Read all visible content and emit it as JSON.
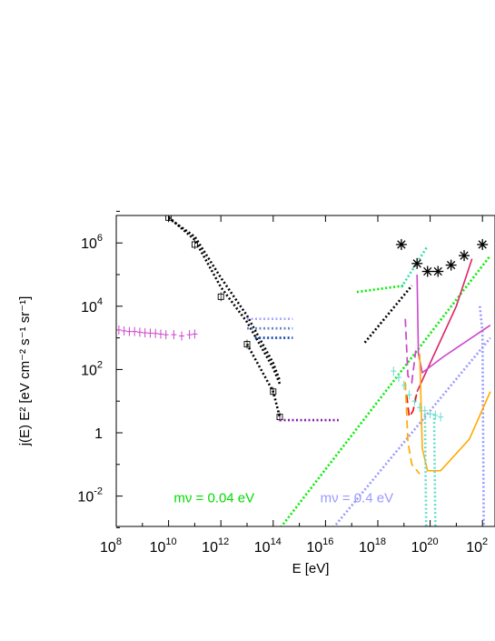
{
  "chart_data": {
    "type": "line",
    "xlabel": "E [eV]",
    "ylabel": "j(E) E² [eV cm⁻² s⁻¹ sr⁻¹]",
    "x_scale": "log",
    "y_scale": "log",
    "xlim_log10": [
      8,
      22.3
    ],
    "ylim_log10": [
      -3,
      7
    ],
    "x_ticks": [
      {
        "base": "10",
        "exp": "8",
        "log": 8
      },
      {
        "base": "10",
        "exp": "10",
        "log": 10
      },
      {
        "base": "10",
        "exp": "12",
        "log": 12
      },
      {
        "base": "10",
        "exp": "14",
        "log": 14
      },
      {
        "base": "10",
        "exp": "16",
        "log": 16
      },
      {
        "base": "10",
        "exp": "18",
        "log": 18
      },
      {
        "base": "10",
        "exp": "20",
        "log": 20
      },
      {
        "base": "10",
        "exp": "2",
        "log": 22
      }
    ],
    "y_ticks": [
      {
        "base": "10",
        "exp": "-2",
        "log": -2
      },
      {
        "base": "1",
        "exp": "",
        "log": 0
      },
      {
        "base": "10",
        "exp": "2",
        "log": 2
      },
      {
        "base": "10",
        "exp": "4",
        "log": 4
      },
      {
        "base": "10",
        "exp": "6",
        "log": 6
      }
    ],
    "annotations": [
      {
        "text": "mν = 0.04 eV",
        "color": "#00dd00",
        "x_log": 10.2,
        "y_log": -2.2
      },
      {
        "text": "mν = 0.4 eV",
        "color": "#9999ff",
        "x_log": 15.8,
        "y_log": -2.2
      }
    ],
    "series": [
      {
        "color": "#cc44cc",
        "style": "markers-err",
        "points": [
          [
            8.1,
            3.25
          ],
          [
            8.3,
            3.22
          ],
          [
            8.5,
            3.2
          ],
          [
            8.7,
            3.2
          ],
          [
            8.9,
            3.18
          ],
          [
            9.1,
            3.16
          ],
          [
            9.3,
            3.15
          ],
          [
            9.5,
            3.14
          ],
          [
            9.7,
            3.12
          ],
          [
            9.9,
            3.1
          ],
          [
            10.2,
            3.1
          ],
          [
            10.5,
            3.06
          ],
          [
            10.8,
            3.1
          ],
          [
            11.0,
            3.12
          ]
        ]
      },
      {
        "color": "#000000",
        "style": "dotted",
        "points": [
          [
            10.0,
            6.82
          ],
          [
            11.0,
            6.1
          ],
          [
            12.0,
            4.6
          ],
          [
            13.0,
            3.5
          ],
          [
            14.0,
            2.05
          ],
          [
            14.25,
            1.55
          ]
        ]
      },
      {
        "color": "#000000",
        "style": "dotted",
        "points": [
          [
            10.0,
            6.78
          ],
          [
            11.0,
            6.2
          ],
          [
            12.0,
            4.9
          ],
          [
            13.0,
            3.7
          ],
          [
            14.0,
            2.2
          ],
          [
            14.25,
            1.65
          ]
        ]
      },
      {
        "color": "#000000",
        "style": "markers-sq",
        "points": [
          [
            10.0,
            6.8
          ],
          [
            11.0,
            5.95
          ],
          [
            12.0,
            4.3
          ],
          [
            13.0,
            2.8
          ],
          [
            14.0,
            1.3
          ],
          [
            14.25,
            0.5
          ]
        ]
      },
      {
        "color": "#000000",
        "style": "dotted",
        "points": [
          [
            13.0,
            2.8
          ],
          [
            14.0,
            1.3
          ],
          [
            14.25,
            0.5
          ]
        ]
      },
      {
        "color": "#aaaaff",
        "style": "dotted",
        "points": [
          [
            13.0,
            3.6
          ],
          [
            14.75,
            3.6
          ]
        ]
      },
      {
        "color": "#6688cc",
        "style": "dotted",
        "points": [
          [
            13.0,
            3.3
          ],
          [
            14.75,
            3.3
          ]
        ]
      },
      {
        "color": "#1144aa",
        "style": "dotted",
        "points": [
          [
            13.3,
            3.0
          ],
          [
            14.75,
            3.0
          ]
        ]
      },
      {
        "color": "#8822aa",
        "style": "dotted",
        "points": [
          [
            14.25,
            0.4
          ],
          [
            16.5,
            0.4
          ]
        ]
      },
      {
        "color": "#00ee00",
        "style": "dotted",
        "points": [
          [
            17.2,
            4.45
          ],
          [
            19.0,
            4.65
          ]
        ]
      },
      {
        "color": "#000000",
        "style": "dotted",
        "points": [
          [
            17.5,
            2.85
          ],
          [
            19.3,
            4.65
          ]
        ]
      },
      {
        "color": "#33ddaa",
        "style": "dotted",
        "points": [
          [
            18.9,
            4.6
          ],
          [
            19.9,
            5.9
          ]
        ]
      },
      {
        "color": "#000000",
        "style": "markers-star",
        "points": [
          [
            18.9,
            5.95
          ],
          [
            19.5,
            5.35
          ],
          [
            19.9,
            5.1
          ],
          [
            20.3,
            5.1
          ],
          [
            20.8,
            5.3
          ],
          [
            21.3,
            5.6
          ],
          [
            22.0,
            5.95
          ]
        ]
      },
      {
        "color": "#00ee00",
        "style": "dotted",
        "points": [
          [
            14.0,
            -3.3
          ],
          [
            22.3,
            5.6
          ]
        ]
      },
      {
        "color": "#9999ff",
        "style": "dotted",
        "points": [
          [
            16.0,
            -3.3
          ],
          [
            22.0,
            2.7
          ],
          [
            22.3,
            3.0
          ]
        ]
      },
      {
        "color": "#9999ff",
        "style": "dotted",
        "points": [
          [
            21.9,
            4.0
          ],
          [
            22.0,
            3.2
          ],
          [
            22.05,
            -3.0
          ]
        ]
      },
      {
        "color": "#ee1111",
        "style": "dashed",
        "points": [
          [
            19.1,
            1.2
          ],
          [
            19.2,
            0.5
          ],
          [
            19.35,
            0.7
          ],
          [
            19.5,
            1.3
          ]
        ]
      },
      {
        "color": "#dd2266",
        "style": "solid",
        "points": [
          [
            19.5,
            1.3
          ],
          [
            21.0,
            4.0
          ],
          [
            21.6,
            5.5
          ]
        ]
      },
      {
        "color": "#cc44cc",
        "style": "dashed",
        "points": [
          [
            19.05,
            3.6
          ],
          [
            19.15,
            1.8
          ],
          [
            19.3,
            1.6
          ],
          [
            19.45,
            2.6
          ]
        ]
      },
      {
        "color": "#cc44cc",
        "style": "solid",
        "points": [
          [
            19.5,
            5.0
          ],
          [
            19.55,
            2.5
          ],
          [
            19.7,
            1.9
          ],
          [
            20.5,
            2.4
          ],
          [
            22.3,
            3.4
          ]
        ]
      },
      {
        "color": "#ffaa00",
        "style": "dashed",
        "points": [
          [
            19.05,
            1.6
          ],
          [
            19.15,
            -0.3
          ],
          [
            19.3,
            -1.0
          ],
          [
            19.6,
            -1.3
          ]
        ]
      },
      {
        "color": "#ffaa00",
        "style": "solid",
        "points": [
          [
            19.6,
            2.5
          ],
          [
            19.7,
            -0.5
          ],
          [
            19.9,
            -1.2
          ],
          [
            20.4,
            -1.2
          ],
          [
            21.5,
            -0.2
          ],
          [
            22.3,
            1.3
          ]
        ]
      },
      {
        "color": "#66ddcc",
        "style": "markers-err",
        "points": [
          [
            18.6,
            1.95
          ],
          [
            18.8,
            1.75
          ],
          [
            19.0,
            1.5
          ],
          [
            19.2,
            1.2
          ],
          [
            19.4,
            1.0
          ],
          [
            19.6,
            0.8
          ],
          [
            19.8,
            0.7
          ],
          [
            20.0,
            0.6
          ],
          [
            20.2,
            0.55
          ],
          [
            20.4,
            0.5
          ]
        ]
      },
      {
        "color": "#66ddcc",
        "style": "dotted",
        "points": [
          [
            19.8,
            0.6
          ],
          [
            19.85,
            -3.0
          ]
        ]
      },
      {
        "color": "#66ddcc",
        "style": "dotted",
        "points": [
          [
            20.15,
            0.6
          ],
          [
            20.2,
            -3.0
          ]
        ]
      }
    ]
  }
}
